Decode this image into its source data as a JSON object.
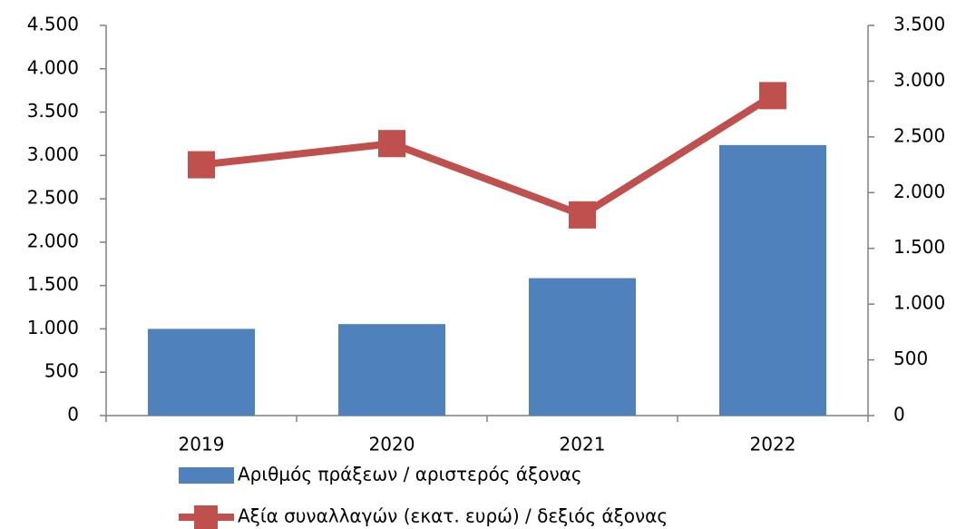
{
  "chart_data": {
    "type": "bar-line",
    "categories": [
      "2019",
      "2020",
      "2021",
      "2022"
    ],
    "series": [
      {
        "name": "Αριθμός πράξεων / αριστερός άξονας",
        "type": "bar",
        "color": "#4f81bd",
        "values": [
          1000,
          1055,
          1585,
          3120
        ]
      },
      {
        "name": "Αξία συναλλαγών (εκατ. ευρώ) / δεξιός άξονας",
        "type": "line",
        "axis": "y2",
        "color": "#c0504d",
        "values": [
          2250,
          2440,
          1800,
          2870
        ]
      }
    ],
    "ylim": [
      0,
      4500
    ],
    "yticks": [
      0,
      500,
      {
        "value": 1000,
        "label": "1.000"
      },
      {
        "value": 1500,
        "label": "1.500"
      },
      {
        "value": 2000,
        "label": "2.000"
      },
      {
        "value": 2500,
        "label": "2.500"
      },
      {
        "value": 3000,
        "label": "3.000"
      },
      {
        "value": 3500,
        "label": "3.500"
      },
      {
        "value": 4000,
        "label": "4.000"
      },
      {
        "value": 4500,
        "label": "4.500"
      }
    ],
    "y2lim": [
      0,
      3500
    ],
    "y2ticks": [
      0,
      500,
      {
        "value": 1000,
        "label": "1.000"
      },
      {
        "value": 1500,
        "label": "1.500"
      },
      {
        "value": 2000,
        "label": "2.000"
      },
      {
        "value": 2500,
        "label": "2.500"
      },
      {
        "value": 3000,
        "label": "3.000"
      },
      {
        "value": 3500,
        "label": "3.500"
      }
    ],
    "legend": "bottom"
  }
}
